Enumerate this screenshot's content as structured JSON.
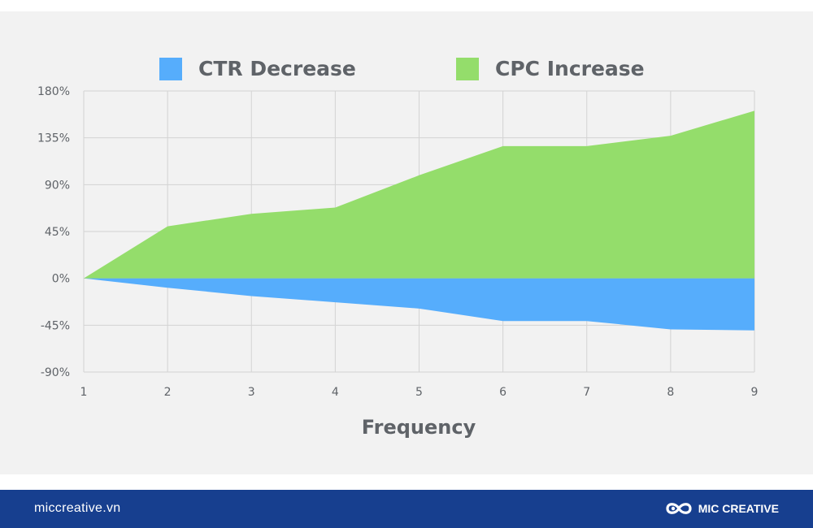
{
  "chart_data": {
    "type": "area",
    "x": [
      1,
      2,
      3,
      4,
      5,
      6,
      7,
      8,
      9
    ],
    "series": [
      {
        "name": "CTR Decrease",
        "color": "#56adfc",
        "values": [
          0,
          -9,
          -17,
          -23,
          -29,
          -41,
          -41,
          -49,
          -50
        ]
      },
      {
        "name": "CPC Increase",
        "color": "#94dd6b",
        "values": [
          0,
          50,
          62,
          68,
          99,
          127,
          127,
          137,
          161
        ]
      }
    ],
    "xlabel": "Frequency",
    "ylabel": "",
    "xlim": [
      1,
      9
    ],
    "ylim": [
      -90,
      180
    ],
    "yticks": [
      180,
      135,
      90,
      45,
      0,
      -45,
      -90
    ],
    "ytick_labels": [
      "180%",
      "135%",
      "90%",
      "45%",
      "0%",
      "-45%",
      "-90%"
    ],
    "xtick_labels": [
      "1",
      "2",
      "3",
      "4",
      "5",
      "6",
      "7",
      "8",
      "9"
    ],
    "grid": true,
    "legend": "top"
  },
  "footer": {
    "url": "miccreative.vn",
    "brand": "MIC CREATIVE",
    "logo_icon": "infinity-logo-icon",
    "background": "#173f8f"
  }
}
